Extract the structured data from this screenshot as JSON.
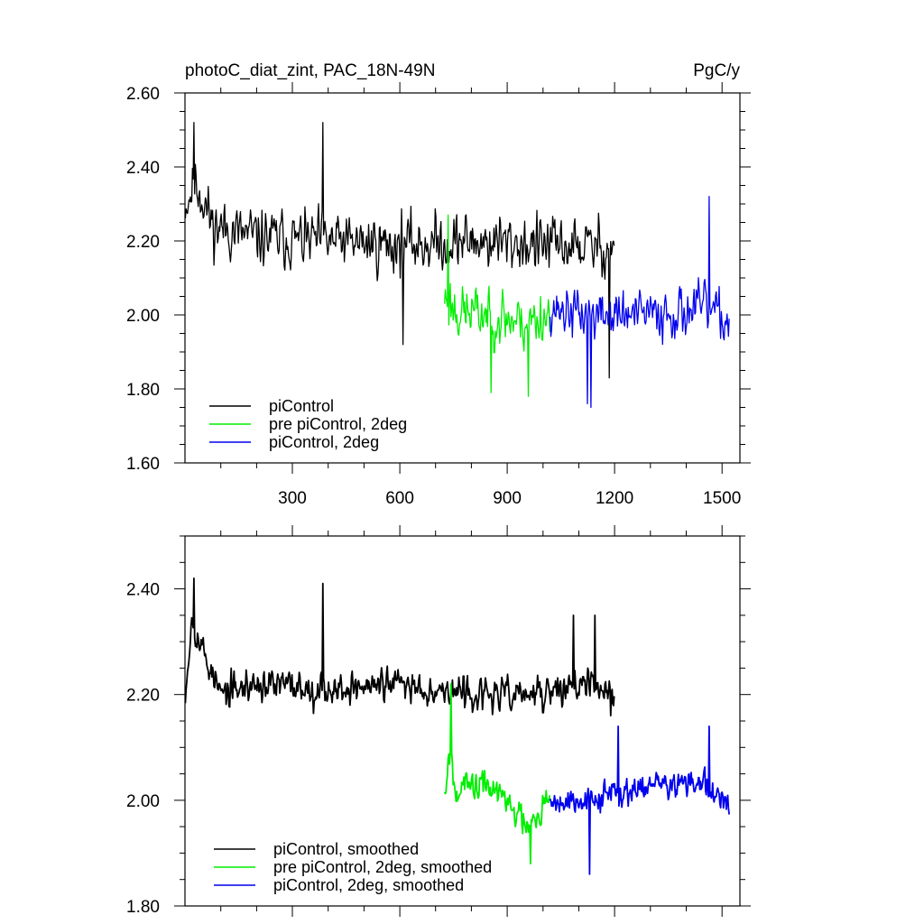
{
  "chart_data": [
    {
      "type": "line",
      "title": "photoC_diat_zint, PAC_18N-49N",
      "units": "PgC/y",
      "xlim": [
        0,
        1550
      ],
      "ylim": [
        1.6,
        2.6
      ],
      "xticks": [
        300,
        600,
        900,
        1200,
        1500
      ],
      "xtick_labels": [
        "300",
        "600",
        "900",
        "1200",
        "1500"
      ],
      "yticks": [
        1.6,
        1.8,
        2.0,
        2.2,
        2.4,
        2.6
      ],
      "ytick_labels": [
        "1.60",
        "1.80",
        "2.00",
        "2.20",
        "2.40",
        "2.60"
      ],
      "legend_position": "bottom-left",
      "series": [
        {
          "name": "piControl",
          "color": "#000000",
          "x_start": 1,
          "x_end": 1200,
          "mean": 2.2,
          "noise": 0.085,
          "seed": 11,
          "anchors": [
            [
              1,
              2.3
            ],
            [
              30,
              2.36
            ],
            [
              80,
              2.24
            ],
            [
              200,
              2.21
            ],
            [
              400,
              2.2
            ],
            [
              600,
              2.19
            ],
            [
              800,
              2.2
            ],
            [
              1000,
              2.19
            ],
            [
              1200,
              2.18
            ]
          ],
          "spikes": [
            [
              25,
              2.52
            ],
            [
              385,
              2.52
            ],
            [
              610,
              1.92
            ],
            [
              1185,
              1.83
            ]
          ]
        },
        {
          "name": "pre piControl, 2deg",
          "color": "#00ee00",
          "x_start": 725,
          "x_end": 1020,
          "mean": 2.02,
          "noise": 0.085,
          "seed": 23,
          "anchors": [
            [
              725,
              2.05
            ],
            [
              760,
              2.01
            ],
            [
              850,
              2.0
            ],
            [
              950,
              1.98
            ],
            [
              1020,
              2.0
            ]
          ],
          "spikes": [
            [
              735,
              2.27
            ],
            [
              855,
              1.79
            ],
            [
              960,
              1.78
            ]
          ]
        },
        {
          "name": "piControl, 2deg",
          "color": "#0000ee",
          "x_start": 1020,
          "x_end": 1520,
          "mean": 2.02,
          "noise": 0.075,
          "seed": 37,
          "anchors": [
            [
              1020,
              2.02
            ],
            [
              1120,
              2.0
            ],
            [
              1300,
              2.0
            ],
            [
              1450,
              2.02
            ],
            [
              1520,
              1.98
            ]
          ],
          "spikes": [
            [
              1125,
              1.76
            ],
            [
              1135,
              1.75
            ],
            [
              1465,
              2.32
            ]
          ]
        }
      ]
    },
    {
      "type": "line",
      "xlim": [
        0,
        1550
      ],
      "ylim": [
        1.8,
        2.5
      ],
      "xticks": [
        300,
        600,
        900,
        1200,
        1500
      ],
      "yticks": [
        1.8,
        2.0,
        2.2,
        2.4
      ],
      "ytick_labels": [
        "1.80",
        "2.00",
        "2.20",
        "2.40"
      ],
      "legend_position": "bottom-left",
      "series": [
        {
          "name": "piControl, smoothed",
          "color": "#000000",
          "x_start": 1,
          "x_end": 1200,
          "mean": 2.2,
          "noise": 0.035,
          "seed": 53,
          "anchors": [
            [
              1,
              2.21
            ],
            [
              20,
              2.35
            ],
            [
              40,
              2.3
            ],
            [
              100,
              2.2
            ],
            [
              200,
              2.22
            ],
            [
              400,
              2.21
            ],
            [
              600,
              2.22
            ],
            [
              800,
              2.2
            ],
            [
              1000,
              2.2
            ],
            [
              1100,
              2.22
            ],
            [
              1200,
              2.2
            ]
          ],
          "spikes": [
            [
              25,
              2.42
            ],
            [
              385,
              2.41
            ],
            [
              1085,
              2.35
            ],
            [
              1145,
              2.35
            ],
            [
              1190,
              2.16
            ]
          ]
        },
        {
          "name": "pre piControl, 2deg, smoothed",
          "color": "#00ee00",
          "x_start": 725,
          "x_end": 1020,
          "mean": 2.01,
          "noise": 0.035,
          "seed": 67,
          "anchors": [
            [
              725,
              2.02
            ],
            [
              740,
              2.1
            ],
            [
              760,
              2.02
            ],
            [
              850,
              2.03
            ],
            [
              950,
              1.96
            ],
            [
              1020,
              2.0
            ]
          ],
          "spikes": [
            [
              743,
              2.22
            ],
            [
              965,
              1.88
            ]
          ]
        },
        {
          "name": "piControl, 2deg, smoothed",
          "color": "#0000ee",
          "x_start": 1020,
          "x_end": 1520,
          "mean": 2.02,
          "noise": 0.03,
          "seed": 79,
          "anchors": [
            [
              1020,
              2.0
            ],
            [
              1120,
              2.0
            ],
            [
              1300,
              2.03
            ],
            [
              1450,
              2.03
            ],
            [
              1520,
              1.98
            ]
          ],
          "spikes": [
            [
              1130,
              1.86
            ],
            [
              1210,
              2.14
            ],
            [
              1465,
              2.14
            ]
          ]
        }
      ]
    }
  ]
}
